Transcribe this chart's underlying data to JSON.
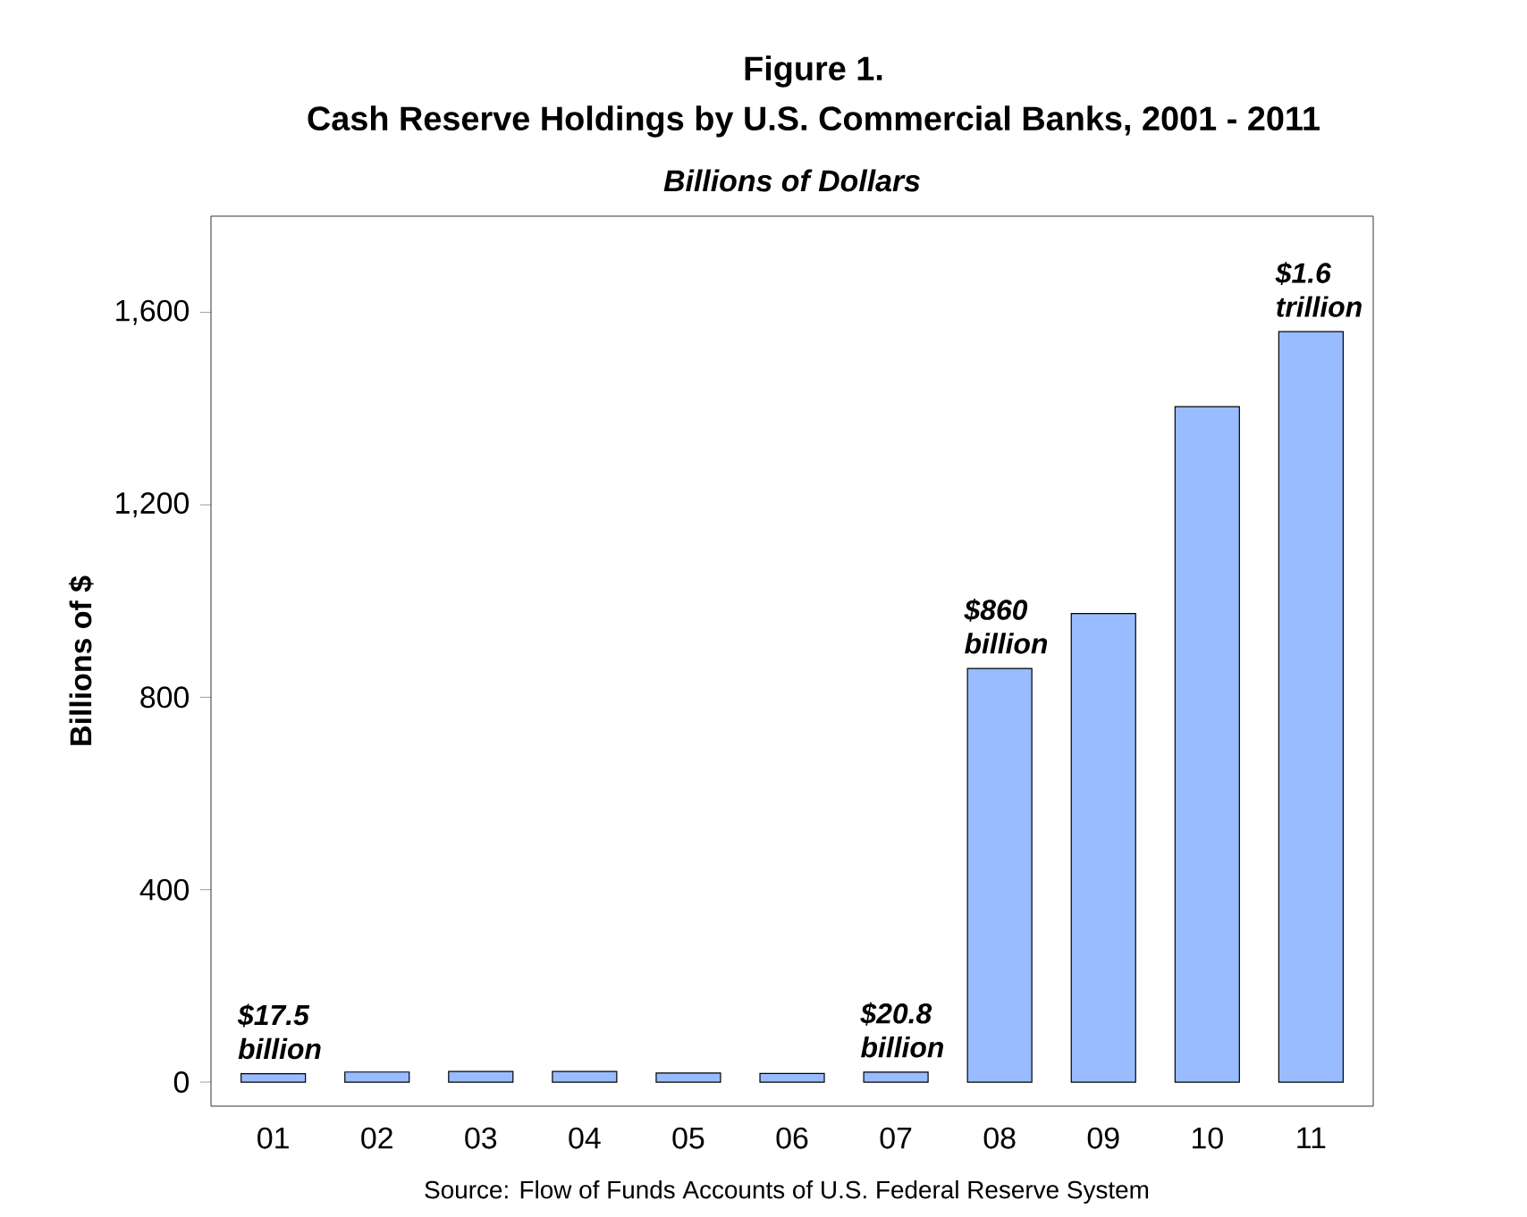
{
  "chart_data": {
    "type": "bar",
    "title": "Figure 1.",
    "subtitle": "Cash Reserve Holdings by U.S. Commercial Banks, 2001 - 2011",
    "ylabel": "Billions of $",
    "categories": [
      "01",
      "02",
      "03",
      "04",
      "05",
      "06",
      "07",
      "08",
      "09",
      "10",
      "11"
    ],
    "values": [
      17.5,
      21,
      22,
      22,
      19,
      18,
      20.8,
      860,
      974,
      1404,
      1560
    ],
    "color": "#99bbff",
    "ylim": [
      -50,
      1800
    ],
    "yticks": [
      0,
      400,
      800,
      {
        "value": 1200,
        "label": "1,200"
      },
      {
        "value": 1600,
        "label": "1,600"
      }
    ],
    "annotations": [
      "Billions of Dollars",
      {
        "text": "$17.5 billion",
        "x": "01",
        "y": 17.5
      },
      {
        "text": "$20.8 billion",
        "x": "07",
        "y": 20.8
      },
      {
        "text": "$860 billion",
        "x": "08",
        "y": 860
      },
      {
        "text": "$1.6 trillion",
        "x": "11",
        "y": 1560
      },
      "Source:  Flow of Funds Accounts of U.S. Federal Reserve System"
    ]
  }
}
